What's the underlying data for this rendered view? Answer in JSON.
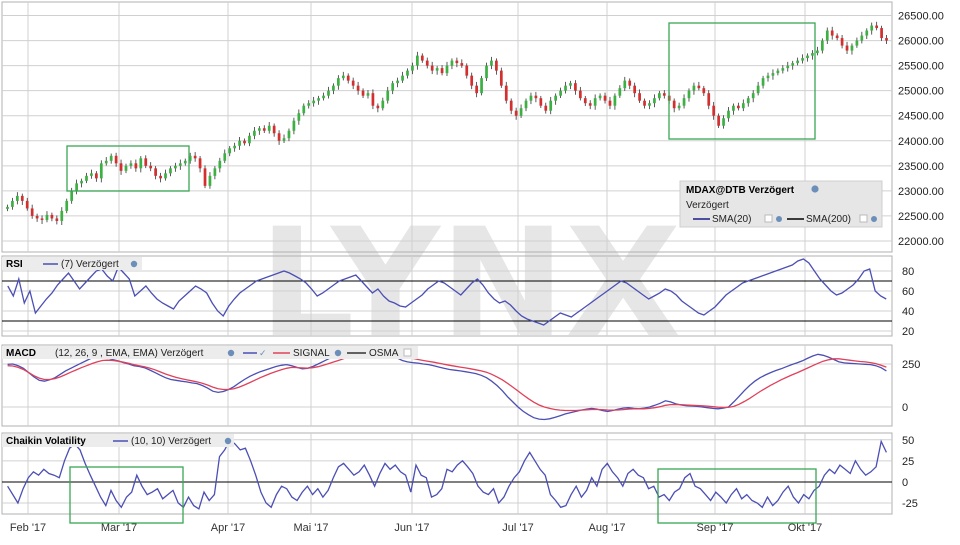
{
  "watermark": "LYNX",
  "colors": {
    "background": "#ffffff",
    "grid": "#d0d0d0",
    "panel_border": "#b0b0b0",
    "up_candle": "#3cb043",
    "down_candle": "#d32f2f",
    "indicator_line": "#4b4fb4",
    "signal_line": "#e0415a",
    "zero_line": "#000000",
    "highlight_box": "#3aa655",
    "legend_bg": "#e6e6e6"
  },
  "legend": {
    "title": "MDAX@DTB Verzögert",
    "subtitle": "Verzögert",
    "items": [
      "SMA(20)",
      "SMA(200)"
    ]
  },
  "panels": {
    "rsi": {
      "name": "RSI",
      "params": "(7) Verzögert"
    },
    "macd": {
      "name": "MACD",
      "params": "(12, 26, 9 , EMA, EMA) Verzögert",
      "signal_label": "SIGNAL",
      "osma_label": "OSMA"
    },
    "chaikin": {
      "name": "Chaikin Volatility",
      "params": "(10, 10) Verzögert"
    }
  },
  "chart_data": [
    {
      "type": "candlestick",
      "title": "MDAX@DTB Verzögert",
      "x_tick_labels": [
        "Feb '17",
        "Mar '17",
        "Apr '17",
        "Mai '17",
        "Jun '17",
        "Jul '17",
        "Aug '17",
        "Sep '17",
        "Okt '17"
      ],
      "y_ticks": [
        22000,
        22500,
        23000,
        23500,
        24000,
        24500,
        25000,
        25500,
        26000,
        26500
      ],
      "y_tick_labels": [
        "22000.00",
        "22500.00",
        "23000.00",
        "23500.00",
        "24000.00",
        "24500.00",
        "25000.00",
        "25500.00",
        "26000.00",
        "26500.00"
      ],
      "ylim": [
        21900,
        26650
      ],
      "close": [
        22680,
        22800,
        22900,
        22800,
        22650,
        22500,
        22450,
        22420,
        22520,
        22450,
        22400,
        22600,
        22800,
        23000,
        23150,
        23200,
        23300,
        23350,
        23250,
        23550,
        23600,
        23700,
        23550,
        23400,
        23500,
        23550,
        23450,
        23650,
        23500,
        23450,
        23300,
        23250,
        23350,
        23450,
        23500,
        23550,
        23600,
        23700,
        23650,
        23450,
        23100,
        23300,
        23450,
        23600,
        23750,
        23850,
        23900,
        24000,
        23950,
        24100,
        24200,
        24250,
        24200,
        24300,
        24150,
        24000,
        24050,
        24200,
        24400,
        24550,
        24700,
        24750,
        24800,
        24850,
        24900,
        25000,
        25100,
        25250,
        25300,
        25200,
        25100,
        25000,
        24900,
        24950,
        24700,
        24650,
        24800,
        25000,
        25150,
        25200,
        25300,
        25400,
        25500,
        25700,
        25600,
        25500,
        25400,
        25450,
        25350,
        25500,
        25600,
        25550,
        25500,
        25300,
        25100,
        24950,
        25250,
        25500,
        25600,
        25400,
        25100,
        24800,
        24600,
        24500,
        24650,
        24800,
        24900,
        24850,
        24700,
        24600,
        24800,
        24900,
        25000,
        25100,
        25150,
        25000,
        24850,
        24750,
        24700,
        24850,
        24900,
        24800,
        24700,
        24900,
        25050,
        25200,
        25100,
        24950,
        24800,
        24700,
        24750,
        24850,
        24950,
        24900,
        24800,
        24650,
        24700,
        24850,
        25000,
        25100,
        25050,
        24950,
        24700,
        24500,
        24300,
        24450,
        24600,
        24700,
        24650,
        24750,
        24850,
        24950,
        25100,
        25250,
        25300,
        25350,
        25400,
        25450,
        25500,
        25550,
        25600,
        25650,
        25700,
        25750,
        25800,
        26000,
        26200,
        26100,
        26050,
        25900,
        25800,
        25900,
        26000,
        26100,
        26200,
        26300,
        26250,
        26050,
        26000
      ]
    },
    {
      "type": "line",
      "title": "RSI",
      "series": [
        {
          "name": "(7) Verzögert",
          "values": [
            65,
            55,
            72,
            48,
            60,
            38,
            45,
            52,
            58,
            66,
            72,
            78,
            70,
            62,
            68,
            74,
            80,
            82,
            75,
            70,
            84,
            78,
            72,
            55,
            60,
            65,
            58,
            52,
            48,
            45,
            42,
            50,
            55,
            60,
            65,
            62,
            58,
            48,
            40,
            35,
            45,
            52,
            58,
            62,
            66,
            70,
            72,
            74,
            76,
            78,
            80,
            78,
            75,
            72,
            68,
            62,
            55,
            58,
            62,
            66,
            70,
            72,
            74,
            76,
            70,
            64,
            58,
            62,
            55,
            50,
            48,
            45,
            44,
            48,
            52,
            56,
            62,
            66,
            70,
            68,
            64,
            60,
            56,
            62,
            68,
            72,
            66,
            58,
            52,
            48,
            50,
            46,
            40,
            35,
            32,
            30,
            28,
            26,
            30,
            34,
            38,
            36,
            34,
            38,
            42,
            46,
            50,
            54,
            58,
            62,
            66,
            70,
            68,
            64,
            60,
            56,
            52,
            55,
            58,
            62,
            60,
            56,
            50,
            46,
            42,
            38,
            36,
            40,
            44,
            50,
            56,
            60,
            64,
            68,
            70,
            72,
            74,
            76,
            78,
            80,
            82,
            84,
            86,
            90,
            92,
            88,
            80,
            72,
            66,
            60,
            56,
            58,
            62,
            66,
            72,
            80,
            82,
            60,
            55,
            52
          ]
        }
      ],
      "reference_lines": [
        30,
        70
      ],
      "y_tick_labels": [
        "20",
        "40",
        "60",
        "80"
      ],
      "ylim": [
        15,
        95
      ]
    },
    {
      "type": "line",
      "title": "MACD",
      "series": [
        {
          "name": "(12, 26, 9 , EMA, EMA) Verzögert",
          "values": [
            248,
            250,
            240,
            225,
            200,
            175,
            155,
            150,
            158,
            170,
            190,
            210,
            225,
            240,
            255,
            270,
            285,
            292,
            295,
            285,
            275,
            268,
            258,
            250,
            240,
            235,
            228,
            215,
            200,
            185,
            170,
            160,
            155,
            150,
            146,
            140,
            136,
            125,
            110,
            92,
            85,
            90,
            102,
            118,
            140,
            160,
            178,
            192,
            205,
            215,
            225,
            235,
            242,
            246,
            240,
            230,
            222,
            225,
            235,
            250,
            265,
            280,
            290,
            300,
            310,
            315,
            320,
            325,
            330,
            335,
            340,
            335,
            320,
            300,
            285,
            270,
            262,
            258,
            255,
            250,
            246,
            240,
            232,
            224,
            218,
            214,
            210,
            205,
            200,
            194,
            184,
            170,
            150,
            125,
            95,
            60,
            30,
            0,
            -25,
            -45,
            -62,
            -70,
            -72,
            -68,
            -60,
            -50,
            -40,
            -32,
            -25,
            -18,
            -12,
            -8,
            -12,
            -20,
            -26,
            -20,
            -12,
            -6,
            -4,
            -8,
            -10,
            -6,
            0,
            10,
            22,
            36,
            30,
            18,
            12,
            8,
            6,
            4,
            0,
            -4,
            -8,
            -10,
            -6,
            0,
            30,
            62,
            95,
            125,
            150,
            170,
            186,
            200,
            212,
            222,
            234,
            246,
            256,
            268,
            282,
            296,
            306,
            300,
            290,
            276,
            262,
            256,
            254,
            252,
            250,
            248,
            246,
            240,
            228,
            210
          ]
        },
        {
          "name": "SIGNAL",
          "values": [
            240,
            238,
            230,
            218,
            200,
            182,
            168,
            160,
            160,
            165,
            175,
            188,
            202,
            215,
            228,
            240,
            252,
            262,
            270,
            272,
            270,
            266,
            260,
            254,
            246,
            240,
            234,
            226,
            216,
            204,
            192,
            182,
            172,
            165,
            158,
            152,
            146,
            138,
            128,
            116,
            106,
            102,
            102,
            106,
            116,
            128,
            142,
            156,
            170,
            183,
            195,
            206,
            216,
            225,
            230,
            229,
            227,
            226,
            228,
            234,
            242,
            252,
            262,
            272,
            282,
            290,
            298,
            305,
            312,
            318,
            324,
            326,
            323,
            316,
            307,
            297,
            289,
            282,
            276,
            270,
            265,
            260,
            254,
            248,
            242,
            237,
            232,
            227,
            222,
            216,
            210,
            202,
            190,
            175,
            158,
            138,
            116,
            93,
            70,
            48,
            28,
            12,
            0,
            -8,
            -14,
            -18,
            -20,
            -20,
            -20,
            -18,
            -16,
            -14,
            -14,
            -15,
            -17,
            -18,
            -17,
            -15,
            -12,
            -11,
            -11,
            -10,
            -8,
            -4,
            2,
            10,
            14,
            15,
            14,
            12,
            10,
            9,
            7,
            5,
            2,
            -1,
            -2,
            -2,
            4,
            16,
            32,
            50,
            70,
            90,
            108,
            126,
            142,
            158,
            172,
            186,
            198,
            212,
            226,
            240,
            254,
            266,
            274,
            280,
            280,
            276,
            272,
            268,
            264,
            262,
            258,
            252,
            242,
            232
          ]
        },
        {
          "name": "OSMA",
          "values": []
        }
      ],
      "y_tick_labels": [
        "0",
        "250"
      ],
      "ylim": [
        -110,
        360
      ]
    },
    {
      "type": "line",
      "title": "Chaikin Volatility",
      "series": [
        {
          "name": "(10, 10) Verzögert",
          "values": [
            -5,
            -15,
            -25,
            -8,
            5,
            12,
            8,
            15,
            10,
            8,
            5,
            25,
            40,
            45,
            38,
            22,
            8,
            -5,
            -18,
            -28,
            -10,
            -22,
            -30,
            -18,
            -12,
            8,
            -5,
            -15,
            -12,
            -8,
            -20,
            -15,
            -10,
            -25,
            -30,
            -18,
            -28,
            -32,
            -12,
            -22,
            -15,
            30,
            38,
            50,
            45,
            38,
            40,
            25,
            8,
            -12,
            -25,
            -30,
            -15,
            -5,
            -8,
            -18,
            -22,
            -12,
            -5,
            -15,
            -8,
            -18,
            -10,
            5,
            18,
            22,
            15,
            8,
            12,
            20,
            8,
            -5,
            10,
            22,
            15,
            20,
            12,
            8,
            -12,
            20,
            8,
            5,
            -18,
            -15,
            -8,
            15,
            12,
            20,
            25,
            18,
            10,
            -5,
            -12,
            -15,
            -8,
            -25,
            -18,
            -5,
            5,
            12,
            25,
            35,
            25,
            15,
            8,
            -15,
            -22,
            -30,
            -28,
            -15,
            -5,
            -18,
            -10,
            5,
            -5,
            15,
            22,
            12,
            5,
            -5,
            10,
            15,
            8,
            5,
            -8,
            -5,
            -18,
            -15,
            -22,
            -12,
            -8,
            5,
            10,
            -5,
            -8,
            -15,
            -22,
            -12,
            -18,
            -25,
            -15,
            -8,
            -20,
            -15,
            -22,
            -25,
            -30,
            -18,
            -28,
            -22,
            -12,
            -5,
            -18,
            -25,
            -15,
            -20,
            -10,
            -5,
            8,
            15,
            10,
            20,
            15,
            10,
            25,
            15,
            8,
            12,
            18,
            48,
            35
          ]
        }
      ],
      "zero_line": 0,
      "y_tick_labels": [
        "-25",
        "0",
        "25",
        "50"
      ],
      "ylim": [
        -38,
        58
      ]
    }
  ]
}
